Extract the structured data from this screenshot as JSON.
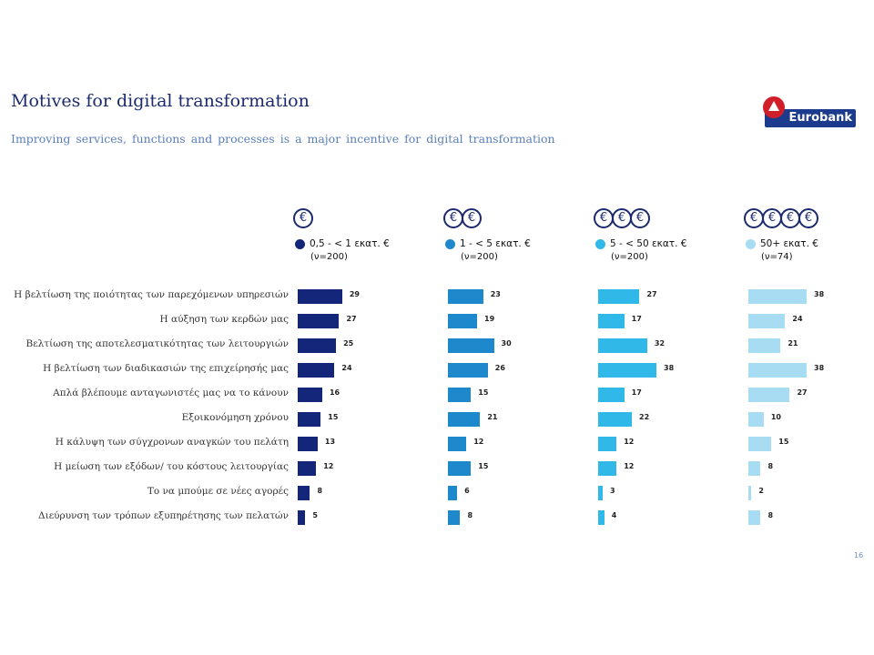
{
  "header": {
    "title": "Motives for digital transformation",
    "subtitle": "Improving services, functions and processes is a major incentive for digital transformation"
  },
  "logo": {
    "text": "Eurobank",
    "mark_color": "#d11f2a",
    "bar_color": "#1d3b8c"
  },
  "page_number": "16",
  "chart_data": {
    "type": "bar",
    "orientation": "horizontal",
    "categories": [
      "Η βελτίωση της ποιότητας των παρεχόμενων υπηρεσιών",
      "Η αύξηση των κερδών μας",
      "Βελτίωση της αποτελεσματικότητας των λειτουργιών",
      "Η βελτίωση των διαδικασιών της επιχείρησής μας",
      "Απλά βλέπουμε ανταγωνιστές μας να το κάνουν",
      "Εξοικονόμηση χρόνου",
      "Η κάλυψη των σύγχρονων αναγκών του πελάτη",
      "Η μείωση των εξόδων/ του κόστους λειτουργίας",
      "Το να μπούμε σε νέες αγορές",
      "Διεύρυνση των τρόπων εξυπηρέτησης των πελατών"
    ],
    "series": [
      {
        "name": "0,5 - < 1 εκατ. €",
        "n": "(ν=200)",
        "euro_icons": 1,
        "color": "#13267a",
        "values": [
          29,
          27,
          25,
          24,
          16,
          15,
          13,
          12,
          8,
          5
        ]
      },
      {
        "name": "1 - < 5 εκατ. €",
        "n": "(ν=200)",
        "euro_icons": 2,
        "color": "#1e88cc",
        "values": [
          23,
          19,
          30,
          26,
          15,
          21,
          12,
          15,
          6,
          8
        ]
      },
      {
        "name": "5 - < 50 εκατ. €",
        "n": "(ν=200)",
        "euro_icons": 3,
        "color": "#2fb8e8",
        "values": [
          27,
          17,
          32,
          38,
          17,
          22,
          12,
          12,
          3,
          4
        ]
      },
      {
        "name": "50+ εκατ. €",
        "n": "(ν=74)",
        "euro_icons": 4,
        "color": "#a8dcf2",
        "values": [
          38,
          24,
          21,
          38,
          27,
          10,
          15,
          8,
          2,
          8
        ]
      }
    ],
    "xlim": [
      0,
      40
    ],
    "legend_placement": "top, above each panel"
  }
}
